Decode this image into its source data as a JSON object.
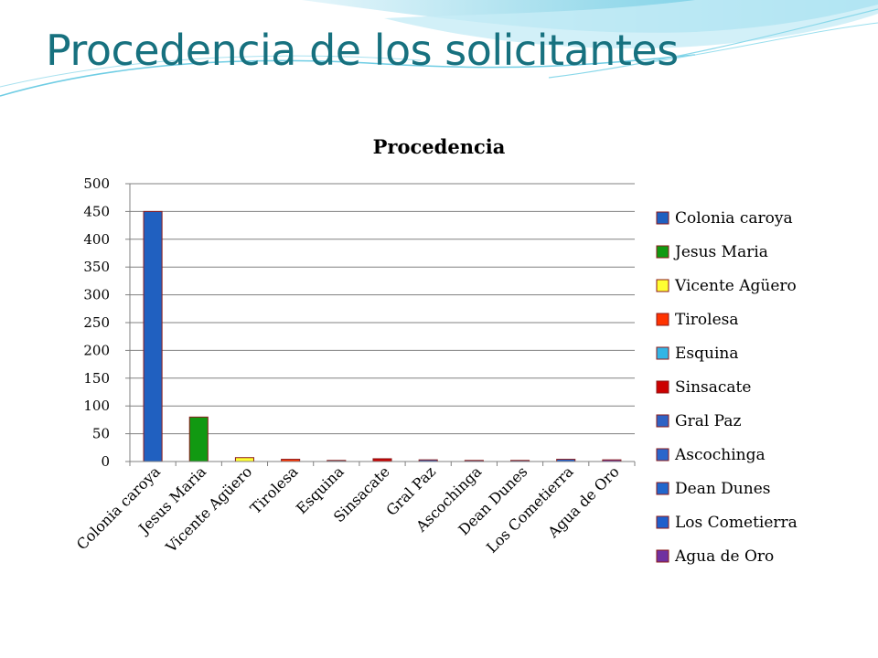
{
  "slide": {
    "title": "Procedencia de los solicitantes"
  },
  "colors": {
    "title": "#17717f",
    "wave": "#7fd3e6"
  },
  "chart_data": {
    "type": "bar",
    "title": "Procedencia",
    "xlabel": "",
    "ylabel": "",
    "ylim": [
      0,
      500
    ],
    "yticks": [
      0,
      50,
      100,
      150,
      200,
      250,
      300,
      350,
      400,
      450,
      500
    ],
    "grid": true,
    "legend_position": "right",
    "categories": [
      "Colonia caroya",
      "Jesus Maria",
      "Vicente Agüero",
      "Tirolesa",
      "Esquina",
      "Sinsacate",
      "Gral Paz",
      "Ascochinga",
      "Dean Dunes",
      "Los Cometierra",
      "Agua de Oro"
    ],
    "values": [
      450,
      80,
      7,
      4,
      1,
      5,
      3,
      1,
      1,
      4,
      3
    ],
    "colors": [
      "#2060c0",
      "#119911",
      "#ffff33",
      "#ff3300",
      "#33b5e5",
      "#cc0000",
      "#2f62c4",
      "#2a66cc",
      "#2266cc",
      "#1f5fcc",
      "#7030a0"
    ]
  }
}
